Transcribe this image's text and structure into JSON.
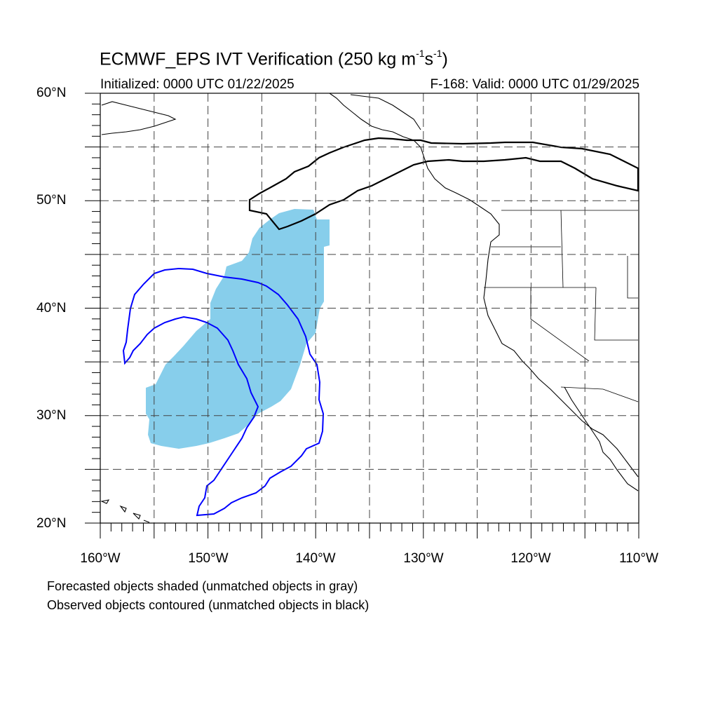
{
  "title": {
    "main": "ECMWF_EPS IVT Verification (250 kg m",
    "exp1": "-1",
    "unit_s": "s",
    "exp2": "-1",
    "close": ")"
  },
  "subtitle_left": "Initialized: 0000 UTC 01/22/2025",
  "subtitle_right": "F-168: Valid: 0000 UTC 01/29/2025",
  "lat_labels": [
    "60°N",
    "50°N",
    "40°N",
    "30°N",
    "20°N"
  ],
  "lon_labels": [
    "160°W",
    "150°W",
    "140°W",
    "130°W",
    "120°W",
    "110°W"
  ],
  "notes": [
    "Forecasted objects shaded (unmatched objects in gray)",
    "Observed objects contoured (unmatched objects in black)"
  ],
  "map": {
    "lon_range": [
      -160,
      -110
    ],
    "lat_range": [
      20,
      60
    ],
    "grid_interval_deg": 5,
    "grid_style": "dashed",
    "colors": {
      "forecast_fill": "#87ceeb",
      "matched_contour": "#0000ff",
      "unmatched_contour": "#000000",
      "coastline": "#000000"
    }
  }
}
